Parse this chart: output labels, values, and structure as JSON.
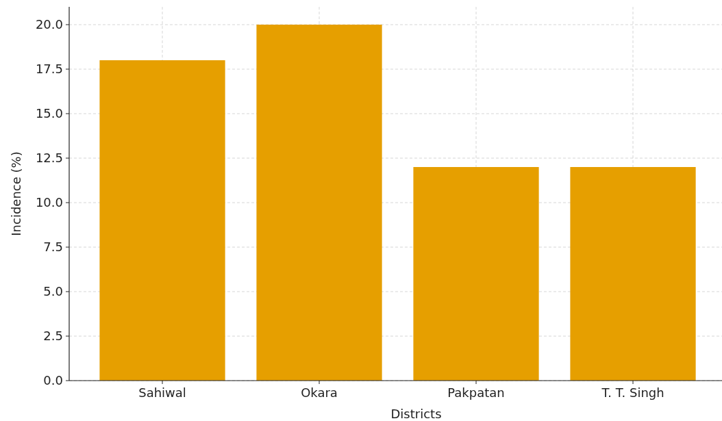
{
  "chart_data": {
    "type": "bar",
    "xlabel": "Districts",
    "ylabel": "Incidence (%)",
    "categories": [
      "Sahiwal",
      "Okara",
      "Pakpatan",
      "T. T. Singh"
    ],
    "values": [
      18,
      20,
      12,
      12
    ],
    "color": "#e69f00",
    "ylim": [
      0,
      21
    ],
    "yticks": [
      {
        "value": 0,
        "label": "0.0"
      },
      {
        "value": 2.5,
        "label": "2.5"
      },
      {
        "value": 5,
        "label": "5.0"
      },
      {
        "value": 7.5,
        "label": "7.5"
      },
      {
        "value": 10,
        "label": "10.0"
      },
      {
        "value": 12.5,
        "label": "12.5"
      },
      {
        "value": 15,
        "label": "15.0"
      },
      {
        "value": 17.5,
        "label": "17.5"
      },
      {
        "value": 20,
        "label": "20.0"
      }
    ],
    "grid": true
  }
}
